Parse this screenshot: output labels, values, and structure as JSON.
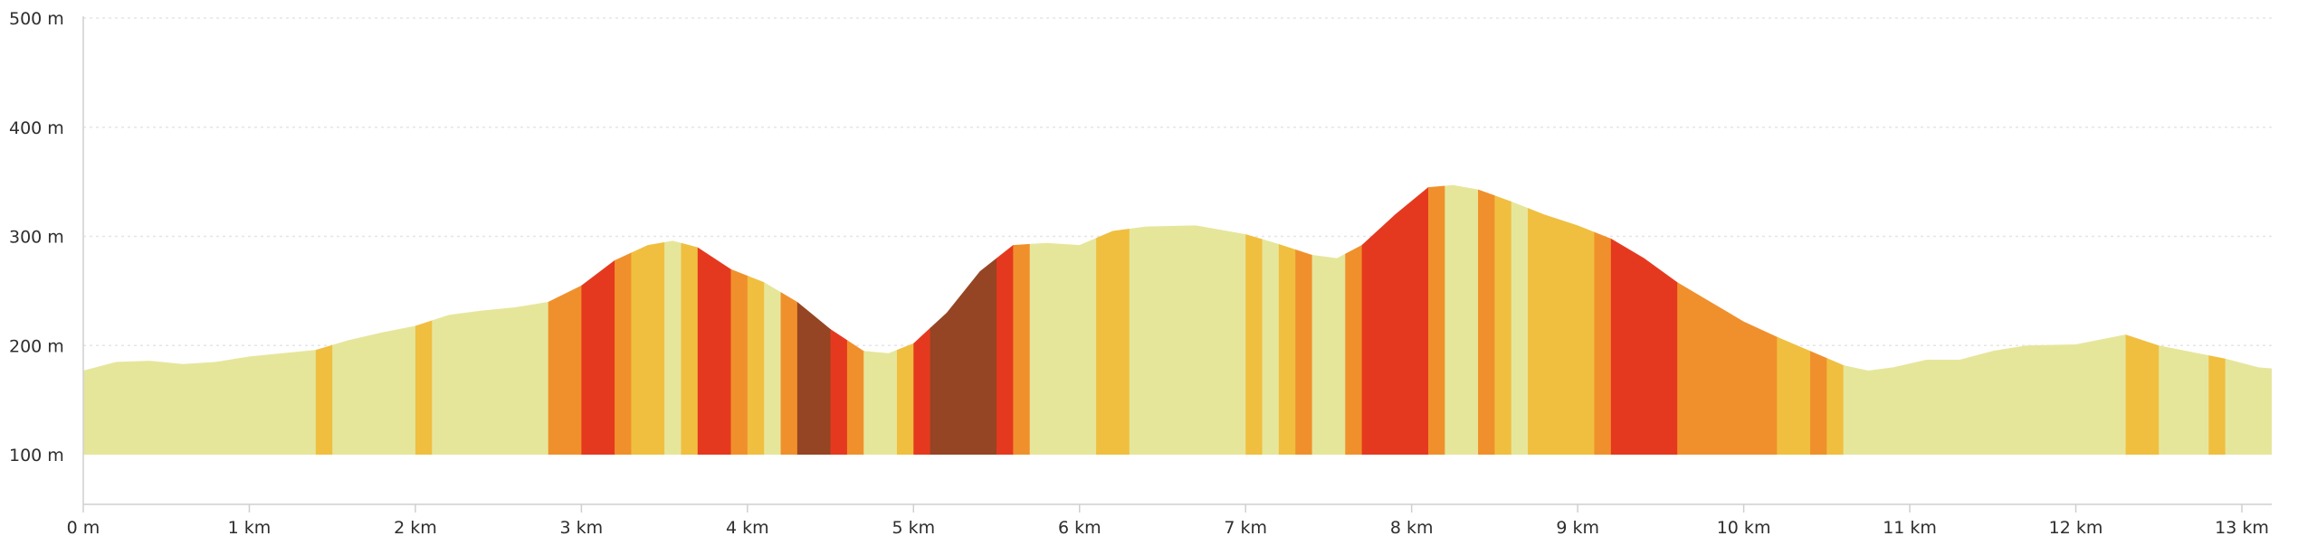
{
  "chart_data": {
    "type": "area",
    "title": "",
    "xlabel": "",
    "ylabel": "",
    "x_unit": "km",
    "y_unit": "m",
    "xlim": [
      0,
      13.18
    ],
    "ylim": [
      100,
      500
    ],
    "grid": true,
    "x_ticks": [
      {
        "value": 0,
        "label": "0 m"
      },
      {
        "value": 1,
        "label": "1 km"
      },
      {
        "value": 2,
        "label": "2 km"
      },
      {
        "value": 3,
        "label": "3 km"
      },
      {
        "value": 4,
        "label": "4 km"
      },
      {
        "value": 5,
        "label": "5 km"
      },
      {
        "value": 6,
        "label": "6 km"
      },
      {
        "value": 7,
        "label": "7 km"
      },
      {
        "value": 8,
        "label": "8 km"
      },
      {
        "value": 9,
        "label": "9 km"
      },
      {
        "value": 10,
        "label": "10 km"
      },
      {
        "value": 11,
        "label": "11 km"
      },
      {
        "value": 12,
        "label": "12 km"
      },
      {
        "value": 13,
        "label": "13 km"
      }
    ],
    "y_ticks": [
      {
        "value": 100,
        "label": "100 m"
      },
      {
        "value": 200,
        "label": "200 m"
      },
      {
        "value": 300,
        "label": "300 m"
      },
      {
        "value": 400,
        "label": "400 m"
      },
      {
        "value": 500,
        "label": "500 m"
      }
    ],
    "elevation_profile": {
      "x": [
        0,
        0.2,
        0.4,
        0.6,
        0.8,
        1.0,
        1.2,
        1.4,
        1.6,
        1.8,
        2.0,
        2.2,
        2.4,
        2.6,
        2.8,
        3.0,
        3.2,
        3.4,
        3.55,
        3.7,
        3.9,
        4.1,
        4.3,
        4.5,
        4.7,
        4.85,
        5.0,
        5.2,
        5.4,
        5.6,
        5.8,
        6.0,
        6.2,
        6.4,
        6.7,
        7.0,
        7.2,
        7.4,
        7.55,
        7.7,
        7.9,
        8.1,
        8.25,
        8.4,
        8.6,
        8.8,
        9.0,
        9.2,
        9.4,
        9.6,
        9.8,
        10.0,
        10.2,
        10.4,
        10.6,
        10.75,
        10.9,
        11.1,
        11.3,
        11.5,
        11.7,
        12.0,
        12.3,
        12.5,
        12.7,
        12.9,
        13.1,
        13.18
      ],
      "y": [
        177,
        185,
        186,
        183,
        185,
        190,
        193,
        196,
        205,
        212,
        218,
        228,
        232,
        235,
        240,
        255,
        278,
        292,
        296,
        290,
        270,
        258,
        240,
        215,
        195,
        193,
        202,
        230,
        268,
        292,
        294,
        292,
        305,
        309,
        310,
        302,
        293,
        283,
        280,
        292,
        320,
        345,
        347,
        343,
        332,
        320,
        310,
        298,
        280,
        258,
        240,
        222,
        208,
        195,
        182,
        177,
        180,
        187,
        187,
        195,
        200,
        201,
        210,
        200,
        194,
        188,
        180,
        179
      ]
    },
    "steepness_segments": [
      {
        "from": 0,
        "to": 1.4,
        "color": "#e6e69b"
      },
      {
        "from": 1.4,
        "to": 1.5,
        "color": "#f0bf40"
      },
      {
        "from": 1.5,
        "to": 2.0,
        "color": "#e6e69b"
      },
      {
        "from": 2.0,
        "to": 2.1,
        "color": "#f0bf40"
      },
      {
        "from": 2.1,
        "to": 2.8,
        "color": "#e6e69b"
      },
      {
        "from": 2.8,
        "to": 3.0,
        "color": "#f0902c"
      },
      {
        "from": 3.0,
        "to": 3.2,
        "color": "#e5391f"
      },
      {
        "from": 3.2,
        "to": 3.3,
        "color": "#f0902c"
      },
      {
        "from": 3.3,
        "to": 3.5,
        "color": "#f0bf40"
      },
      {
        "from": 3.5,
        "to": 3.6,
        "color": "#e6e69b"
      },
      {
        "from": 3.6,
        "to": 3.7,
        "color": "#f0bf40"
      },
      {
        "from": 3.7,
        "to": 3.9,
        "color": "#e5391f"
      },
      {
        "from": 3.9,
        "to": 4.0,
        "color": "#f0902c"
      },
      {
        "from": 4.0,
        "to": 4.1,
        "color": "#f0bf40"
      },
      {
        "from": 4.1,
        "to": 4.2,
        "color": "#e6e69b"
      },
      {
        "from": 4.2,
        "to": 4.3,
        "color": "#f0902c"
      },
      {
        "from": 4.3,
        "to": 4.5,
        "color": "#954523"
      },
      {
        "from": 4.5,
        "to": 4.6,
        "color": "#e5391f"
      },
      {
        "from": 4.6,
        "to": 4.7,
        "color": "#f0902c"
      },
      {
        "from": 4.7,
        "to": 4.9,
        "color": "#e6e69b"
      },
      {
        "from": 4.9,
        "to": 5.0,
        "color": "#f0bf40"
      },
      {
        "from": 5.0,
        "to": 5.1,
        "color": "#e5391f"
      },
      {
        "from": 5.1,
        "to": 5.5,
        "color": "#954523"
      },
      {
        "from": 5.5,
        "to": 5.6,
        "color": "#e5391f"
      },
      {
        "from": 5.6,
        "to": 5.7,
        "color": "#f0902c"
      },
      {
        "from": 5.7,
        "to": 6.1,
        "color": "#e6e69b"
      },
      {
        "from": 6.1,
        "to": 6.3,
        "color": "#f0bf40"
      },
      {
        "from": 6.3,
        "to": 7.0,
        "color": "#e6e69b"
      },
      {
        "from": 7.0,
        "to": 7.1,
        "color": "#f0bf40"
      },
      {
        "from": 7.1,
        "to": 7.2,
        "color": "#e6e69b"
      },
      {
        "from": 7.2,
        "to": 7.3,
        "color": "#f0bf40"
      },
      {
        "from": 7.3,
        "to": 7.4,
        "color": "#f0902c"
      },
      {
        "from": 7.4,
        "to": 7.6,
        "color": "#e6e69b"
      },
      {
        "from": 7.6,
        "to": 7.7,
        "color": "#f0902c"
      },
      {
        "from": 7.7,
        "to": 8.1,
        "color": "#e5391f"
      },
      {
        "from": 8.1,
        "to": 8.2,
        "color": "#f0902c"
      },
      {
        "from": 8.2,
        "to": 8.4,
        "color": "#e6e69b"
      },
      {
        "from": 8.4,
        "to": 8.5,
        "color": "#f0902c"
      },
      {
        "from": 8.5,
        "to": 8.6,
        "color": "#f0bf40"
      },
      {
        "from": 8.6,
        "to": 8.7,
        "color": "#e6e69b"
      },
      {
        "from": 8.7,
        "to": 9.1,
        "color": "#f0bf40"
      },
      {
        "from": 9.1,
        "to": 9.2,
        "color": "#f0902c"
      },
      {
        "from": 9.2,
        "to": 9.6,
        "color": "#e5391f"
      },
      {
        "from": 9.6,
        "to": 10.2,
        "color": "#f0902c"
      },
      {
        "from": 10.2,
        "to": 10.4,
        "color": "#f0bf40"
      },
      {
        "from": 10.4,
        "to": 10.5,
        "color": "#f0902c"
      },
      {
        "from": 10.5,
        "to": 10.6,
        "color": "#f0bf40"
      },
      {
        "from": 10.6,
        "to": 12.3,
        "color": "#e6e69b"
      },
      {
        "from": 12.3,
        "to": 12.5,
        "color": "#f0bf40"
      },
      {
        "from": 12.5,
        "to": 12.8,
        "color": "#e6e69b"
      },
      {
        "from": 12.8,
        "to": 12.9,
        "color": "#f0bf40"
      },
      {
        "from": 12.9,
        "to": 13.18,
        "color": "#e6e69b"
      }
    ]
  }
}
